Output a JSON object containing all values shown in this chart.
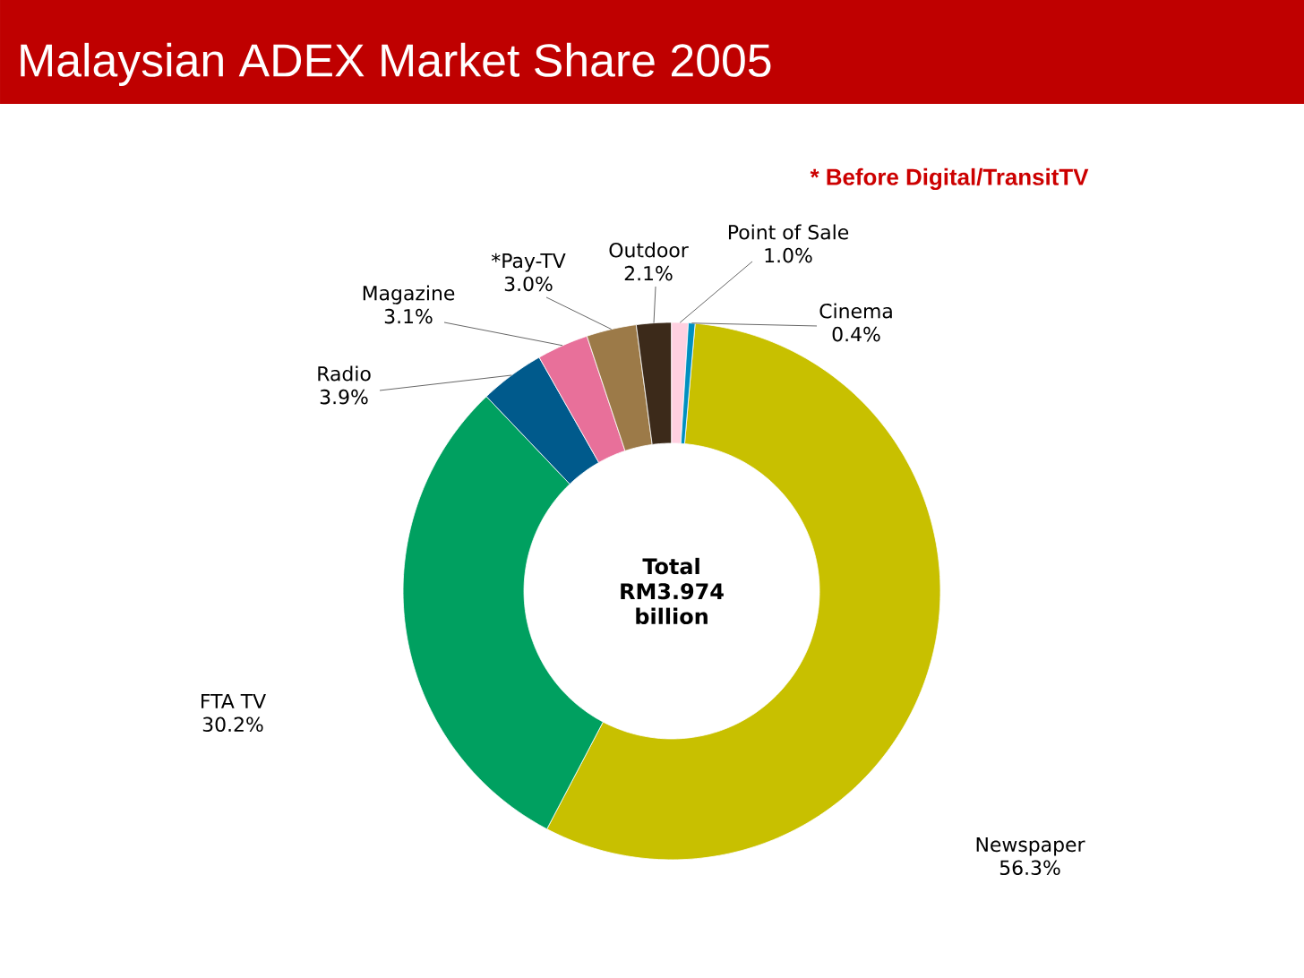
{
  "chart_data": {
    "type": "donut",
    "title": "Malaysian ADEX Market Share 2005",
    "subtitle": "* Before Digital/TransitTV",
    "categories": [
      "Newspaper",
      "FTA TV",
      "Radio",
      "Magazine",
      "*Pay-TV",
      "Outdoor",
      "Point of Sale",
      "Cinema"
    ],
    "values": [
      56.3,
      30.2,
      3.9,
      3.1,
      3.0,
      2.1,
      1.0,
      0.4
    ],
    "value_labels": [
      "56.3%",
      "30.2%",
      "3.9%",
      "3.1%",
      "3.0%",
      "2.1%",
      "1.0%",
      "0.4%"
    ],
    "colors": [
      "#c8c000",
      "#00a060",
      "#005a8c",
      "#e8709a",
      "#9c7a48",
      "#3c2a1a",
      "#ffd0e0",
      "#0090c0"
    ],
    "annotations": [
      "Total RM3.974 billion"
    ]
  }
}
